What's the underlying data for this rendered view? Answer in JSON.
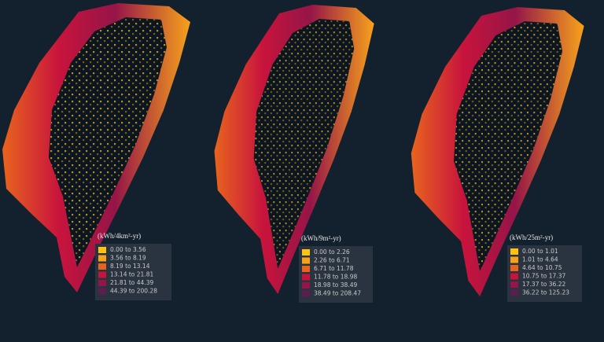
{
  "panels": [
    {
      "unit": "(kWh/4km²-yr)",
      "legend": [
        {
          "label": "0.00 to 3.56",
          "color": "#ffc20e"
        },
        {
          "label": "3.56 to 8.19",
          "color": "#f7a21b"
        },
        {
          "label": "8.19 to 13.14",
          "color": "#e8641e"
        },
        {
          "label": "13.14 to 21.81",
          "color": "#c8143c"
        },
        {
          "label": "21.81 to 44.39",
          "color": "#951548"
        },
        {
          "label": "44.39 to 200.28",
          "color": "#5c1d4f"
        }
      ]
    },
    {
      "unit": "(kWh/9m²-yr)",
      "legend": [
        {
          "label": "0.00 to 2.26",
          "color": "#ffc20e"
        },
        {
          "label": "2.26 to 6.71",
          "color": "#f7a21b"
        },
        {
          "label": "6.71 to 11.78",
          "color": "#e8641e"
        },
        {
          "label": "11.78 to 18.98",
          "color": "#c8143c"
        },
        {
          "label": "18.98 to 38.49",
          "color": "#951548"
        },
        {
          "label": "38.49 to 208.47",
          "color": "#5c1d4f"
        }
      ]
    },
    {
      "unit": "(kWh/25m²-yr)",
      "legend": [
        {
          "label": "0.00 to 1.01",
          "color": "#ffc20e"
        },
        {
          "label": "1.01 to 4.64",
          "color": "#f7a21b"
        },
        {
          "label": "4.64 to 10.75",
          "color": "#e8641e"
        },
        {
          "label": "10.75 to 17.37",
          "color": "#c8143c"
        },
        {
          "label": "17.37 to 36.22",
          "color": "#951548"
        },
        {
          "label": "36.22 to 125.23",
          "color": "#5c1d4f"
        }
      ]
    }
  ]
}
